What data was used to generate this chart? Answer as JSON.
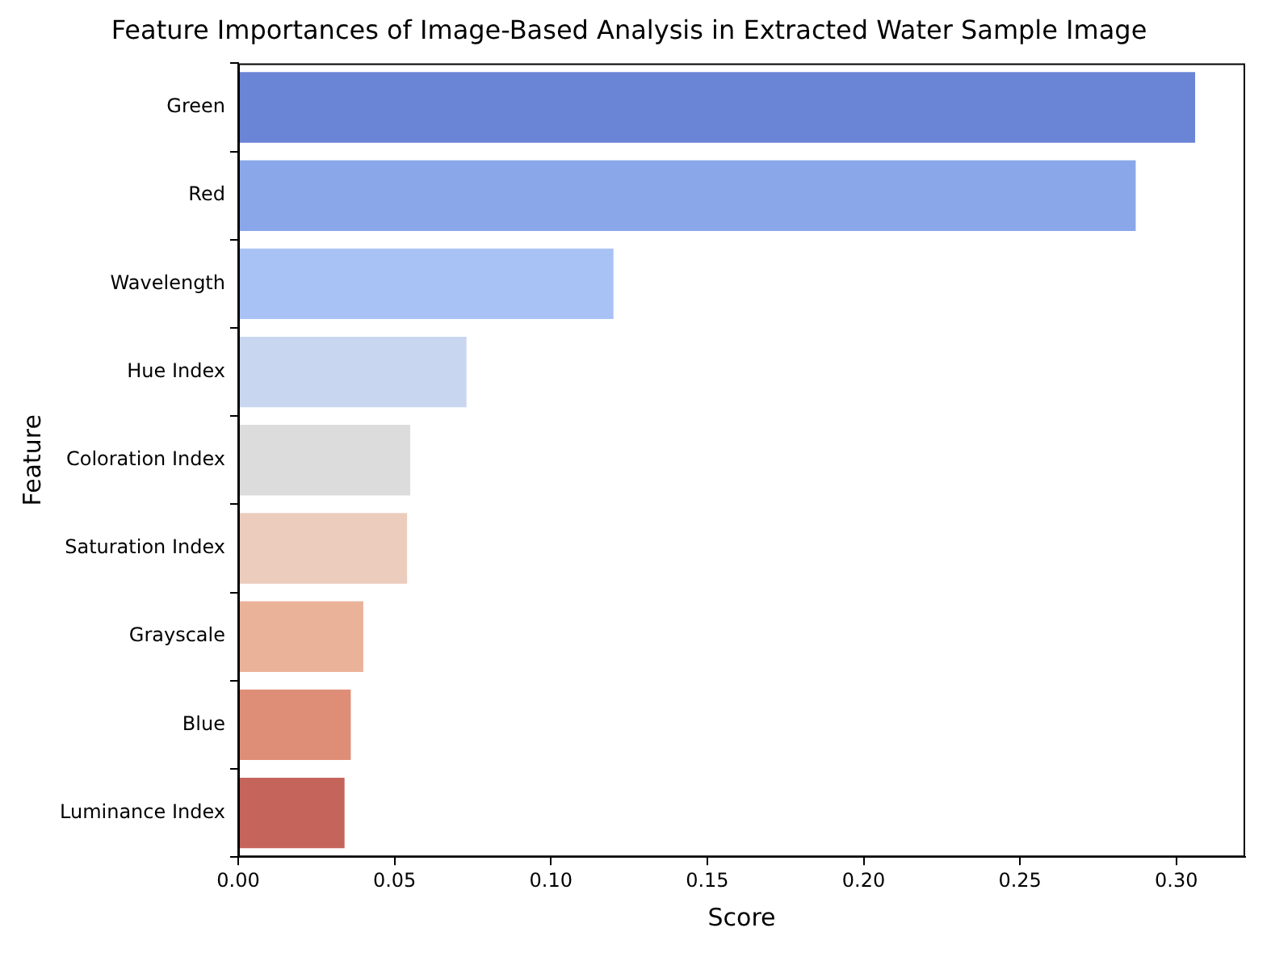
{
  "chart_data": {
    "type": "bar",
    "orientation": "horizontal",
    "title": "Feature Importances of Image-Based Analysis in Extracted Water Sample Image",
    "xlabel": "Score",
    "ylabel": "Feature",
    "categories": [
      "Green",
      "Red",
      "Wavelength",
      "Hue Index",
      "Coloration Index",
      "Saturation Index",
      "Grayscale",
      "Blue",
      "Luminance Index"
    ],
    "values": [
      0.306,
      0.287,
      0.12,
      0.073,
      0.055,
      0.054,
      0.04,
      0.036,
      0.034
    ],
    "colors": [
      "#6a84d6",
      "#8aa7ea",
      "#a9c2f5",
      "#c9d6ef",
      "#dcdcdc",
      "#ebccbd",
      "#ebb29a",
      "#de8e77",
      "#c5645a"
    ],
    "xlim": [
      0,
      0.322
    ],
    "xticks": [
      {
        "value": 0,
        "label": "0.00"
      },
      {
        "value": 0.05,
        "label": "0.05"
      },
      {
        "value": 0.1,
        "label": "0.10"
      },
      {
        "value": 0.15,
        "label": "0.15"
      },
      {
        "value": 0.2,
        "label": "0.20"
      },
      {
        "value": 0.25,
        "label": "0.25"
      },
      {
        "value": 0.3,
        "label": "0.30"
      }
    ],
    "grid": false,
    "legend": false
  }
}
